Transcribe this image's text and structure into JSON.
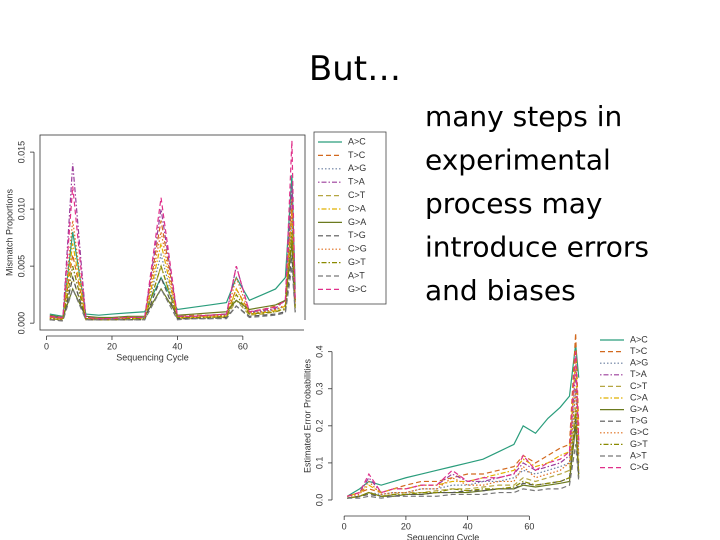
{
  "slide": {
    "title": "But…",
    "body": [
      "many steps in",
      "experimental",
      "process may",
      "introduce errors",
      "and biases"
    ]
  },
  "chart_data": [
    {
      "type": "line",
      "xlabel": "Sequencing Cycle",
      "ylabel": "Mismatch Proportions",
      "xlim": [
        -2,
        79
      ],
      "ylim": [
        -0.0006,
        0.0165
      ],
      "xticks": [
        0,
        20,
        40,
        60
      ],
      "yticks": [
        {
          "value": 0,
          "label": "0.000"
        },
        0.005,
        {
          "value": 0.01,
          "label": "0.010"
        },
        0.015
      ],
      "x": [
        1,
        5,
        8,
        12,
        16,
        20,
        25,
        30,
        35,
        40,
        45,
        50,
        55,
        58,
        62,
        66,
        70,
        73,
        75,
        76
      ],
      "series": [
        {
          "name": "A>C",
          "color": "#2a9d7c",
          "style": "solid",
          "values": [
            0.0008,
            0.0006,
            0.008,
            0.0008,
            0.0007,
            0.0008,
            0.0009,
            0.001,
            0.004,
            0.0012,
            0.0014,
            0.0016,
            0.0018,
            0.004,
            0.002,
            0.0025,
            0.003,
            0.004,
            0.013,
            0.003
          ]
        },
        {
          "name": "T>C",
          "color": "#d2691e",
          "style": "dashed",
          "values": [
            0.0005,
            0.0004,
            0.006,
            0.0005,
            0.0004,
            0.0004,
            0.0005,
            0.0005,
            0.009,
            0.0006,
            0.0007,
            0.0007,
            0.0008,
            0.003,
            0.001,
            0.0012,
            0.0015,
            0.002,
            0.011,
            0.002
          ]
        },
        {
          "name": "A>G",
          "color": "#6a7fa0",
          "style": "dotted",
          "values": [
            0.0004,
            0.0003,
            0.005,
            0.0004,
            0.0004,
            0.0004,
            0.0004,
            0.0005,
            0.006,
            0.0005,
            0.0006,
            0.0006,
            0.0007,
            0.002,
            0.0009,
            0.001,
            0.0012,
            0.0015,
            0.009,
            0.0015
          ]
        },
        {
          "name": "T>A",
          "color": "#9b3d9b",
          "style": "dotdash",
          "values": [
            0.0006,
            0.0004,
            0.014,
            0.0005,
            0.0004,
            0.0004,
            0.0005,
            0.0005,
            0.01,
            0.0006,
            0.0006,
            0.0007,
            0.0008,
            0.005,
            0.001,
            0.0011,
            0.0013,
            0.002,
            0.012,
            0.002
          ]
        },
        {
          "name": "C>T",
          "color": "#b5a642",
          "style": "dashed",
          "values": [
            0.0003,
            0.0003,
            0.004,
            0.0003,
            0.0003,
            0.0003,
            0.0003,
            0.0004,
            0.005,
            0.0004,
            0.0004,
            0.0005,
            0.0005,
            0.002,
            0.0007,
            0.0008,
            0.001,
            0.0012,
            0.008,
            0.001
          ]
        },
        {
          "name": "C>A",
          "color": "#e0b000",
          "style": "dotdash",
          "values": [
            0.0004,
            0.0003,
            0.007,
            0.0004,
            0.0003,
            0.0003,
            0.0004,
            0.0004,
            0.007,
            0.0005,
            0.0005,
            0.0006,
            0.0006,
            0.003,
            0.0008,
            0.0009,
            0.0011,
            0.0015,
            0.01,
            0.0015
          ]
        },
        {
          "name": "G>A",
          "color": "#6b7a1f",
          "style": "solid",
          "values": [
            0.0007,
            0.0005,
            0.003,
            0.0006,
            0.0005,
            0.0005,
            0.0006,
            0.0006,
            0.003,
            0.0007,
            0.0008,
            0.0009,
            0.001,
            0.002,
            0.0012,
            0.0014,
            0.0016,
            0.002,
            0.007,
            0.002
          ]
        },
        {
          "name": "T>G",
          "color": "#555555",
          "style": "dashed",
          "values": [
            0.0003,
            0.0002,
            0.004,
            0.0003,
            0.0003,
            0.0003,
            0.0003,
            0.0003,
            0.004,
            0.0004,
            0.0004,
            0.0004,
            0.0005,
            0.0015,
            0.0006,
            0.0007,
            0.0008,
            0.001,
            0.006,
            0.001
          ]
        },
        {
          "name": "C>G",
          "color": "#e07020",
          "style": "dotted",
          "values": [
            0.0005,
            0.0004,
            0.009,
            0.0004,
            0.0004,
            0.0004,
            0.0005,
            0.0005,
            0.008,
            0.0005,
            0.0006,
            0.0006,
            0.0007,
            0.004,
            0.0009,
            0.001,
            0.0012,
            0.0016,
            0.01,
            0.0016
          ]
        },
        {
          "name": "G>T",
          "color": "#8a8a00",
          "style": "dotdash",
          "values": [
            0.0004,
            0.0003,
            0.005,
            0.0004,
            0.0003,
            0.0003,
            0.0004,
            0.0004,
            0.005,
            0.0005,
            0.0005,
            0.0005,
            0.0006,
            0.0025,
            0.0008,
            0.0009,
            0.001,
            0.0013,
            0.008,
            0.0013
          ]
        },
        {
          "name": "A>T",
          "color": "#777777",
          "style": "dashed",
          "values": [
            0.0003,
            0.0002,
            0.003,
            0.0003,
            0.0003,
            0.0003,
            0.0003,
            0.0003,
            0.003,
            0.0003,
            0.0004,
            0.0004,
            0.0004,
            0.0015,
            0.0005,
            0.0006,
            0.0007,
            0.0009,
            0.005,
            0.0009
          ]
        },
        {
          "name": "G>C",
          "color": "#e0308a",
          "style": "dashed",
          "values": [
            0.0006,
            0.0005,
            0.012,
            0.0005,
            0.0004,
            0.0004,
            0.0005,
            0.0005,
            0.011,
            0.0006,
            0.0006,
            0.0007,
            0.0008,
            0.005,
            0.001,
            0.0012,
            0.0014,
            0.002,
            0.016,
            0.002
          ]
        }
      ]
    },
    {
      "type": "line",
      "xlabel": "Sequencing Cycle",
      "ylabel": "Estimated Error Probabilities",
      "xlim": [
        -2,
        79
      ],
      "ylim": [
        -0.027,
        0.48
      ],
      "xticks": [
        0,
        20,
        40,
        60
      ],
      "yticks": [
        {
          "value": 0,
          "label": "0.0"
        },
        0.1,
        0.2,
        0.3,
        0.4
      ],
      "x": [
        1,
        5,
        8,
        12,
        16,
        20,
        25,
        30,
        35,
        40,
        45,
        50,
        55,
        58,
        62,
        66,
        70,
        73,
        75,
        76
      ],
      "series": [
        {
          "name": "A>C",
          "color": "#2a9d7c",
          "style": "solid",
          "values": [
            0.01,
            0.03,
            0.05,
            0.04,
            0.05,
            0.06,
            0.07,
            0.08,
            0.09,
            0.1,
            0.11,
            0.13,
            0.15,
            0.2,
            0.18,
            0.22,
            0.25,
            0.28,
            0.42,
            0.33
          ]
        },
        {
          "name": "T>C",
          "color": "#d2691e",
          "style": "dashed",
          "values": [
            0.01,
            0.02,
            0.03,
            0.02,
            0.03,
            0.04,
            0.05,
            0.05,
            0.06,
            0.07,
            0.07,
            0.08,
            0.09,
            0.12,
            0.1,
            0.12,
            0.14,
            0.15,
            0.45,
            0.2
          ]
        },
        {
          "name": "A>G",
          "color": "#6a7fa0",
          "style": "dotted",
          "values": [
            0.005,
            0.01,
            0.02,
            0.015,
            0.02,
            0.02,
            0.03,
            0.03,
            0.04,
            0.04,
            0.05,
            0.05,
            0.06,
            0.08,
            0.07,
            0.08,
            0.09,
            0.1,
            0.3,
            0.12
          ]
        },
        {
          "name": "T>A",
          "color": "#9b3d9b",
          "style": "dotdash",
          "values": [
            0.01,
            0.02,
            0.06,
            0.02,
            0.03,
            0.03,
            0.04,
            0.04,
            0.07,
            0.05,
            0.05,
            0.06,
            0.07,
            0.1,
            0.08,
            0.09,
            0.1,
            0.12,
            0.35,
            0.15
          ]
        },
        {
          "name": "C>T",
          "color": "#b5a642",
          "style": "dashed",
          "values": [
            0.005,
            0.01,
            0.02,
            0.01,
            0.015,
            0.02,
            0.02,
            0.025,
            0.03,
            0.03,
            0.035,
            0.04,
            0.04,
            0.06,
            0.05,
            0.06,
            0.07,
            0.08,
            0.25,
            0.1
          ]
        },
        {
          "name": "C>A",
          "color": "#e0b000",
          "style": "dotdash",
          "values": [
            0.01,
            0.02,
            0.04,
            0.02,
            0.03,
            0.03,
            0.04,
            0.04,
            0.05,
            0.05,
            0.06,
            0.07,
            0.08,
            0.11,
            0.09,
            0.1,
            0.12,
            0.13,
            0.38,
            0.16
          ]
        },
        {
          "name": "G>A",
          "color": "#6b7a1f",
          "style": "solid",
          "values": [
            0.005,
            0.01,
            0.02,
            0.01,
            0.01,
            0.015,
            0.015,
            0.02,
            0.02,
            0.02,
            0.025,
            0.03,
            0.03,
            0.04,
            0.035,
            0.04,
            0.045,
            0.05,
            0.2,
            0.06
          ]
        },
        {
          "name": "T>G",
          "color": "#555555",
          "style": "dashed",
          "values": [
            0.005,
            0.01,
            0.015,
            0.01,
            0.01,
            0.015,
            0.015,
            0.02,
            0.02,
            0.025,
            0.025,
            0.03,
            0.03,
            0.045,
            0.04,
            0.045,
            0.05,
            0.06,
            0.22,
            0.07
          ]
        },
        {
          "name": "G>C",
          "color": "#e07020",
          "style": "dotted",
          "values": [
            0.01,
            0.015,
            0.05,
            0.015,
            0.02,
            0.02,
            0.03,
            0.03,
            0.06,
            0.04,
            0.04,
            0.05,
            0.05,
            0.09,
            0.06,
            0.07,
            0.08,
            0.1,
            0.3,
            0.12
          ]
        },
        {
          "name": "G>T",
          "color": "#8a8a00",
          "style": "dotdash",
          "values": [
            0.005,
            0.01,
            0.02,
            0.01,
            0.015,
            0.015,
            0.02,
            0.02,
            0.03,
            0.025,
            0.03,
            0.03,
            0.035,
            0.05,
            0.04,
            0.045,
            0.05,
            0.06,
            0.24,
            0.07
          ]
        },
        {
          "name": "A>T",
          "color": "#777777",
          "style": "dashed",
          "values": [
            0.005,
            0.005,
            0.01,
            0.005,
            0.01,
            0.01,
            0.01,
            0.01,
            0.015,
            0.015,
            0.015,
            0.02,
            0.02,
            0.03,
            0.025,
            0.03,
            0.03,
            0.04,
            0.15,
            0.05
          ]
        },
        {
          "name": "C>G",
          "color": "#e0308a",
          "style": "dashed",
          "values": [
            0.01,
            0.02,
            0.07,
            0.02,
            0.03,
            0.03,
            0.04,
            0.04,
            0.08,
            0.05,
            0.06,
            0.06,
            0.07,
            0.12,
            0.08,
            0.1,
            0.11,
            0.13,
            0.4,
            0.16
          ]
        }
      ]
    }
  ]
}
